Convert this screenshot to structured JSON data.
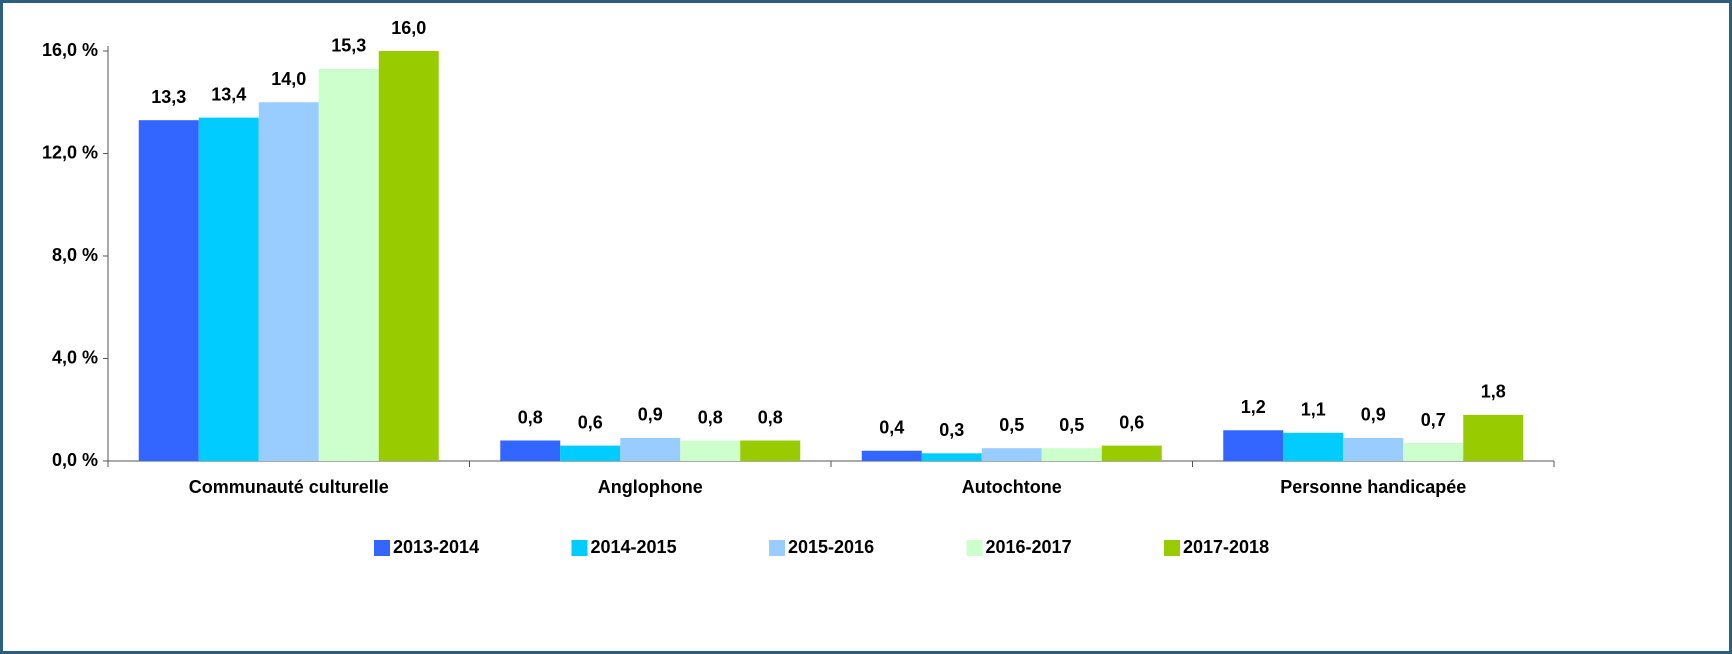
{
  "chart_data": {
    "type": "bar",
    "categories": [
      "Communauté culturelle",
      "Anglophone",
      "Autochtone",
      "Personne handicapée"
    ],
    "series": [
      {
        "name": "2013-2014",
        "color": "#3366ff",
        "values": [
          13.3,
          0.8,
          0.4,
          1.2
        ],
        "value_labels": [
          "13,3",
          "0,8",
          "0,4",
          "1,2"
        ]
      },
      {
        "name": "2014-2015",
        "color": "#00ccff",
        "values": [
          13.4,
          0.6,
          0.3,
          1.1
        ],
        "value_labels": [
          "13,4",
          "0,6",
          "0,3",
          "1,1"
        ]
      },
      {
        "name": "2015-2016",
        "color": "#99ccff",
        "values": [
          14.0,
          0.9,
          0.5,
          0.9
        ],
        "value_labels": [
          "14,0",
          "0,9",
          "0,5",
          "0,9"
        ]
      },
      {
        "name": "2016-2017",
        "color": "#ccffcc",
        "values": [
          15.3,
          0.8,
          0.5,
          0.7
        ],
        "value_labels": [
          "15,3",
          "0,8",
          "0,5",
          "0,7"
        ]
      },
      {
        "name": "2017-2018",
        "color": "#99cc00",
        "values": [
          16.0,
          0.8,
          0.6,
          1.8
        ],
        "value_labels": [
          "16,0",
          "0,8",
          "0,6",
          "1,8"
        ]
      }
    ],
    "ylim": [
      0,
      16
    ],
    "yticks": [
      {
        "value": 0,
        "label": "0,0 %"
      },
      {
        "value": 4,
        "label": "4,0 %"
      },
      {
        "value": 8,
        "label": "8,0 %"
      },
      {
        "value": 12,
        "label": "12,0 %"
      },
      {
        "value": 16,
        "label": "16,0 %"
      }
    ],
    "grid": false,
    "legend": "bottom"
  }
}
